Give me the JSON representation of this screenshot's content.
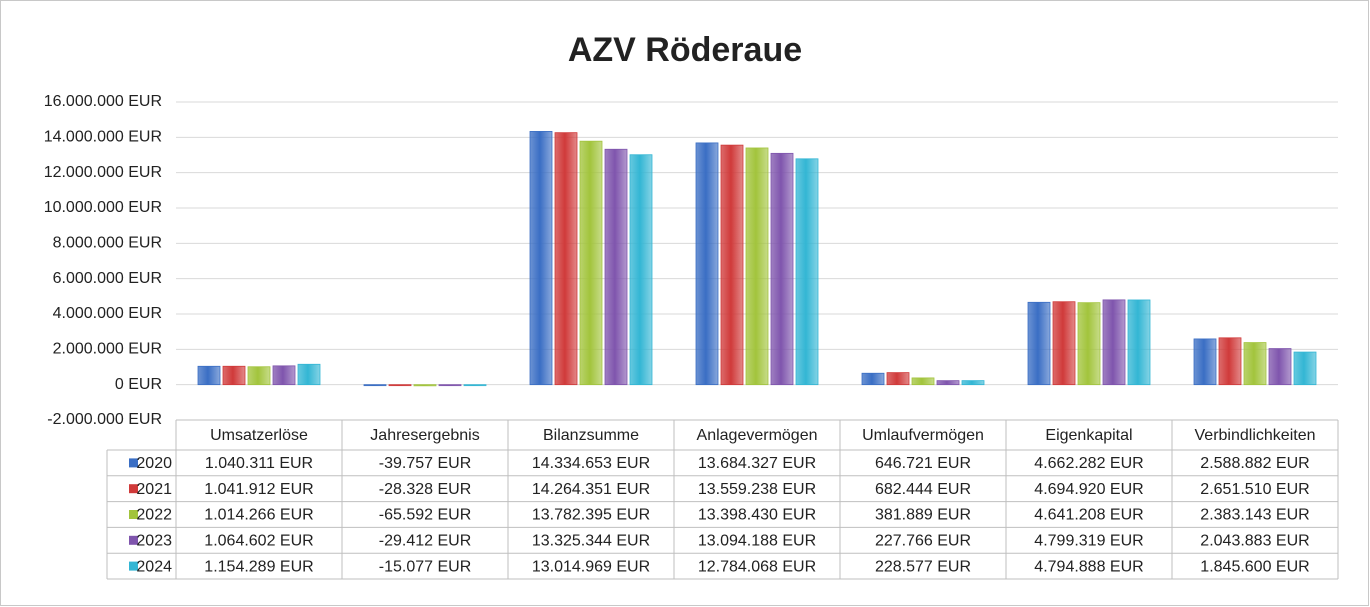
{
  "chart_data": {
    "type": "bar",
    "title": "AZV Röderaue",
    "categories": [
      "Umsatzerlöse",
      "Jahresergebnis",
      "Bilanzsumme",
      "Anlagevermögen",
      "Umlaufvermögen",
      "Eigenkapital",
      "Verbindlichkeiten"
    ],
    "series": [
      {
        "name": "2020",
        "color": "#3a6ec4",
        "values": [
          1040311,
          -39757,
          14334653,
          13684327,
          646721,
          4662282,
          2588882
        ],
        "value_labels": [
          "1.040.311 EUR",
          "-39.757 EUR",
          "14.334.653 EUR",
          "13.684.327 EUR",
          "646.721 EUR",
          "4.662.282 EUR",
          "2.588.882 EUR"
        ]
      },
      {
        "name": "2021",
        "color": "#d03a3a",
        "values": [
          1041912,
          -28328,
          14264351,
          13559238,
          682444,
          4694920,
          2651510
        ],
        "value_labels": [
          "1.041.912 EUR",
          "-28.328 EUR",
          "14.264.351 EUR",
          "13.559.238 EUR",
          "682.444 EUR",
          "4.694.920 EUR",
          "2.651.510 EUR"
        ]
      },
      {
        "name": "2022",
        "color": "#a2c43c",
        "values": [
          1014266,
          -65592,
          13782395,
          13398430,
          381889,
          4641208,
          2383143
        ],
        "value_labels": [
          "1.014.266 EUR",
          "-65.592 EUR",
          "13.782.395 EUR",
          "13.398.430 EUR",
          "381.889 EUR",
          "4.641.208 EUR",
          "2.383.143 EUR"
        ]
      },
      {
        "name": "2023",
        "color": "#7f55ad",
        "values": [
          1064602,
          -29412,
          13325344,
          13094188,
          227766,
          4799319,
          2043883
        ],
        "value_labels": [
          "1.064.602 EUR",
          "-29.412 EUR",
          "13.325.344 EUR",
          "13.094.188 EUR",
          "227.766 EUR",
          "4.799.319 EUR",
          "2.043.883 EUR"
        ]
      },
      {
        "name": "2024",
        "color": "#33b6d4",
        "values": [
          1154289,
          -15077,
          13014969,
          12784068,
          228577,
          4794888,
          1845600
        ],
        "value_labels": [
          "1.154.289 EUR",
          "-15.077 EUR",
          "13.014.969 EUR",
          "12.784.068 EUR",
          "228.577 EUR",
          "4.794.888 EUR",
          "1.845.600 EUR"
        ]
      }
    ],
    "ylim": [
      -2000000,
      16000000
    ],
    "yticks": [
      {
        "value": -2000000,
        "label": "-2.000.000 EUR"
      },
      {
        "value": 0,
        "label": "0 EUR"
      },
      {
        "value": 2000000,
        "label": "2.000.000 EUR"
      },
      {
        "value": 4000000,
        "label": "4.000.000 EUR"
      },
      {
        "value": 6000000,
        "label": "6.000.000 EUR"
      },
      {
        "value": 8000000,
        "label": "8.000.000 EUR"
      },
      {
        "value": 10000000,
        "label": "10.000.000 EUR"
      },
      {
        "value": 12000000,
        "label": "12.000.000 EUR"
      },
      {
        "value": 14000000,
        "label": "14.000.000 EUR"
      },
      {
        "value": 16000000,
        "label": "16.000.000 EUR"
      }
    ],
    "grid": true
  }
}
